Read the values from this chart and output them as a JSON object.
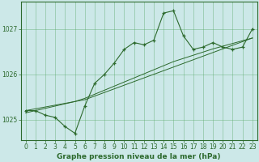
{
  "x": [
    0,
    1,
    2,
    3,
    4,
    5,
    6,
    7,
    8,
    9,
    10,
    11,
    12,
    13,
    14,
    15,
    16,
    17,
    18,
    19,
    20,
    21,
    22,
    23
  ],
  "y_main": [
    1025.2,
    1025.2,
    1025.1,
    1025.05,
    1024.85,
    1024.7,
    1025.3,
    1025.8,
    1026.0,
    1026.25,
    1026.55,
    1026.7,
    1026.65,
    1026.75,
    1027.35,
    1027.4,
    1026.85,
    1026.55,
    1026.6,
    1026.7,
    1026.6,
    1026.55,
    1026.6,
    1027.0
  ],
  "y_trend1": [
    1025.2,
    1025.24,
    1025.28,
    1025.32,
    1025.36,
    1025.4,
    1025.44,
    1025.52,
    1025.6,
    1025.68,
    1025.76,
    1025.84,
    1025.92,
    1026.0,
    1026.08,
    1026.16,
    1026.24,
    1026.32,
    1026.4,
    1026.48,
    1026.56,
    1026.64,
    1026.72,
    1026.8
  ],
  "y_trend2": [
    1025.15,
    1025.2,
    1025.25,
    1025.3,
    1025.35,
    1025.4,
    1025.47,
    1025.56,
    1025.65,
    1025.74,
    1025.83,
    1025.92,
    1026.01,
    1026.1,
    1026.19,
    1026.28,
    1026.35,
    1026.42,
    1026.49,
    1026.56,
    1026.62,
    1026.68,
    1026.74,
    1026.8
  ],
  "main_color": "#2d6a2d",
  "bg_color": "#cce8e8",
  "grid_color": "#5aaa6a",
  "title": "Graphe pression niveau de la mer (hPa)",
  "ylim": [
    1024.55,
    1027.6
  ],
  "yticks": [
    1025,
    1026,
    1027
  ],
  "xlim": [
    -0.5,
    23.5
  ],
  "xticks": [
    0,
    1,
    2,
    3,
    4,
    5,
    6,
    7,
    8,
    9,
    10,
    11,
    12,
    13,
    14,
    15,
    16,
    17,
    18,
    19,
    20,
    21,
    22,
    23
  ],
  "title_fontsize": 6.5,
  "tick_fontsize": 5.5,
  "xlabel_fontsize": 6.5
}
